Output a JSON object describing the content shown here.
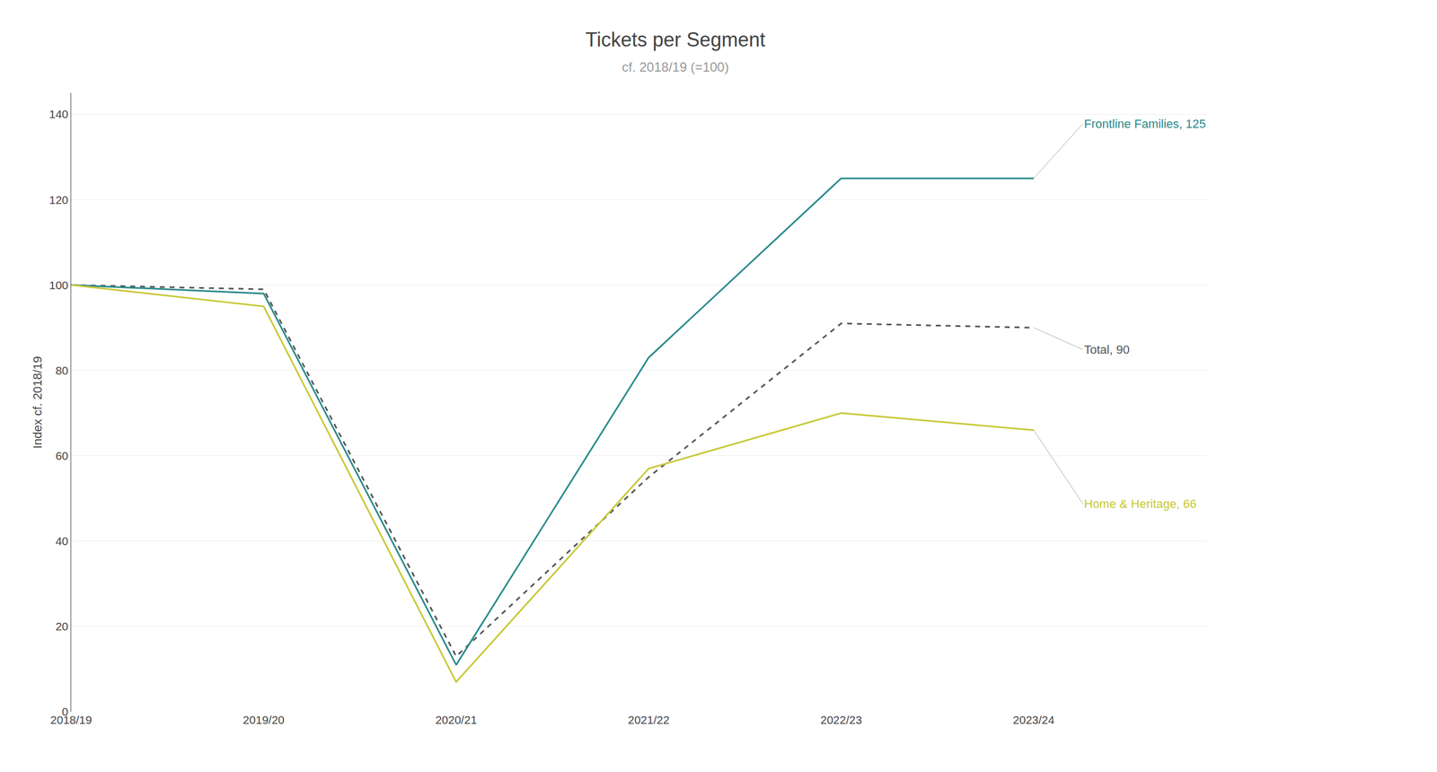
{
  "chart_data": {
    "type": "line",
    "title": "Tickets per Segment",
    "subtitle": "cf. 2018/19 (=100)",
    "ylabel": "Index cf. 2018/19",
    "categories": [
      "2018/19",
      "2019/20",
      "2020/21",
      "2021/22",
      "2022/23",
      "2023/24"
    ],
    "series": [
      {
        "name": "Total, 90",
        "color": "#555555",
        "line_style": "dashed",
        "values": [
          100,
          99,
          13,
          55,
          91,
          90
        ]
      },
      {
        "name": "Frontline Families, 125",
        "color": "#2a8a8c",
        "line_style": "solid",
        "values": [
          100,
          98,
          11,
          83,
          125,
          125
        ]
      },
      {
        "name": "Home & Heritage, 66",
        "color": "#c8c837",
        "line_style": "solid",
        "values": [
          100,
          95,
          7,
          57,
          70,
          66
        ]
      }
    ],
    "ylim": [
      0,
      145
    ],
    "yticks": [
      0,
      20,
      40,
      60,
      80,
      100,
      120,
      140
    ],
    "grid": true
  }
}
